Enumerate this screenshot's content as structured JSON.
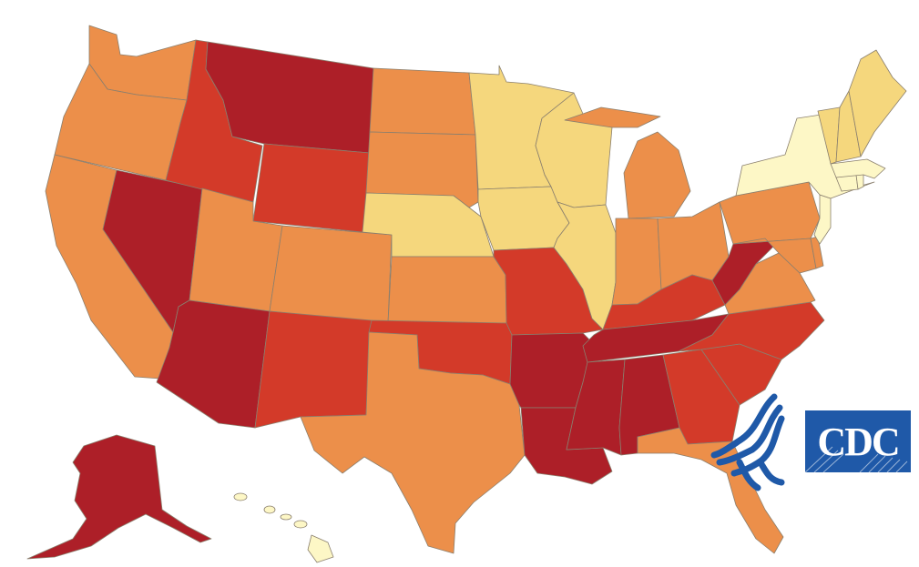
{
  "map": {
    "categories": {
      "lowest": "#fdf7c6",
      "low": "#f5d77d",
      "mid": "#ec8f4a",
      "high": "#d33a29",
      "highest": "#ad1f28"
    },
    "states": [
      {
        "id": "WA",
        "level": "mid"
      },
      {
        "id": "OR",
        "level": "mid"
      },
      {
        "id": "CA",
        "level": "mid"
      },
      {
        "id": "NV",
        "level": "highest"
      },
      {
        "id": "ID",
        "level": "high"
      },
      {
        "id": "MT",
        "level": "highest"
      },
      {
        "id": "WY",
        "level": "high"
      },
      {
        "id": "UT",
        "level": "mid"
      },
      {
        "id": "AZ",
        "level": "highest"
      },
      {
        "id": "CO",
        "level": "mid"
      },
      {
        "id": "NM",
        "level": "high"
      },
      {
        "id": "ND",
        "level": "mid"
      },
      {
        "id": "SD",
        "level": "mid"
      },
      {
        "id": "NE",
        "level": "low"
      },
      {
        "id": "KS",
        "level": "mid"
      },
      {
        "id": "OK",
        "level": "high"
      },
      {
        "id": "TX",
        "level": "mid"
      },
      {
        "id": "MN",
        "level": "low"
      },
      {
        "id": "IA",
        "level": "low"
      },
      {
        "id": "MO",
        "level": "high"
      },
      {
        "id": "AR",
        "level": "highest"
      },
      {
        "id": "LA",
        "level": "highest"
      },
      {
        "id": "WI",
        "level": "low"
      },
      {
        "id": "IL",
        "level": "low"
      },
      {
        "id": "MI",
        "level": "mid"
      },
      {
        "id": "IN",
        "level": "mid"
      },
      {
        "id": "OH",
        "level": "mid"
      },
      {
        "id": "KY",
        "level": "high"
      },
      {
        "id": "TN",
        "level": "highest"
      },
      {
        "id": "MS",
        "level": "highest"
      },
      {
        "id": "AL",
        "level": "highest"
      },
      {
        "id": "GA",
        "level": "high"
      },
      {
        "id": "FL",
        "level": "mid"
      },
      {
        "id": "SC",
        "level": "high"
      },
      {
        "id": "NC",
        "level": "high"
      },
      {
        "id": "VA",
        "level": "mid"
      },
      {
        "id": "WV",
        "level": "highest"
      },
      {
        "id": "PA",
        "level": "mid"
      },
      {
        "id": "NY",
        "level": "lowest"
      },
      {
        "id": "NJ",
        "level": "lowest"
      },
      {
        "id": "MD",
        "level": "mid"
      },
      {
        "id": "DE",
        "level": "mid"
      },
      {
        "id": "CT",
        "level": "lowest"
      },
      {
        "id": "RI",
        "level": "lowest"
      },
      {
        "id": "MA",
        "level": "lowest"
      },
      {
        "id": "VT",
        "level": "low"
      },
      {
        "id": "NH",
        "level": "low"
      },
      {
        "id": "ME",
        "level": "low"
      },
      {
        "id": "AK",
        "level": "highest"
      },
      {
        "id": "HI",
        "level": "lowest"
      }
    ]
  },
  "logo": {
    "text": "CDC",
    "box_color": "#1f59a8",
    "eagle_color": "#1f59a8"
  }
}
